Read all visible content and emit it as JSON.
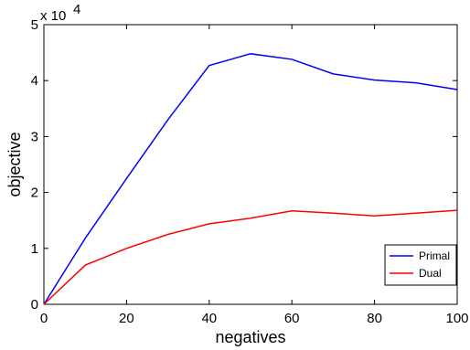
{
  "chart_data": {
    "type": "line",
    "xlabel": "negatives",
    "ylabel": "objective",
    "y_exponent": {
      "base": "x 10",
      "power": "4"
    },
    "xlim": [
      0,
      100
    ],
    "ylim": [
      0,
      5
    ],
    "x_ticks": [
      "0",
      "20",
      "40",
      "60",
      "80",
      "100"
    ],
    "y_ticks": [
      "0",
      "1",
      "2",
      "3",
      "4",
      "5"
    ],
    "grid": false,
    "legend_position": "bottom-right",
    "x": [
      0,
      10,
      20,
      30,
      40,
      50,
      60,
      70,
      80,
      90,
      100
    ],
    "series": [
      {
        "name": "Primal",
        "color": "#0000ff",
        "values": [
          0,
          1.18,
          2.25,
          3.3,
          4.27,
          4.48,
          4.38,
          4.12,
          4.01,
          3.96,
          3.84
        ]
      },
      {
        "name": "Dual",
        "color": "#ff0000",
        "values": [
          0,
          0.7,
          1.0,
          1.25,
          1.44,
          1.54,
          1.67,
          1.63,
          1.58,
          1.63,
          1.68
        ]
      }
    ]
  }
}
